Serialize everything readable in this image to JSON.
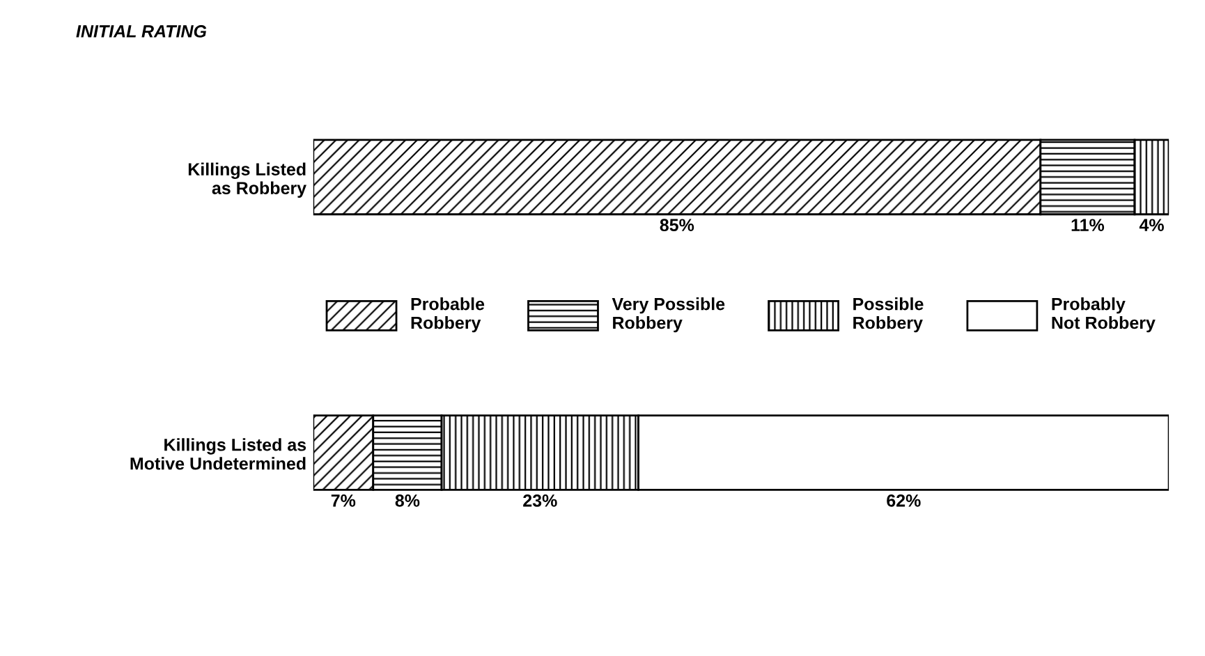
{
  "chart_data": {
    "type": "bar",
    "orientation": "horizontal",
    "stacked": true,
    "title": "INITIAL RATING",
    "categories": [
      "Killings Listed\nas Robbery",
      "Killings Listed as\nMotive Undetermined"
    ],
    "series": [
      {
        "name": "Probable\nRobbery",
        "color": "#000000",
        "values": [
          85,
          7
        ],
        "value_labels": [
          "85%",
          "7%"
        ]
      },
      {
        "name": "Very Possible\nRobbery",
        "color": "#000000",
        "values": [
          11,
          8
        ],
        "value_labels": [
          "11%",
          "8%"
        ]
      },
      {
        "name": "Possible\nRobbery",
        "color": "#000000",
        "values": [
          4,
          23
        ],
        "value_labels": [
          "4%",
          "23%"
        ]
      },
      {
        "name": "Probably\nNot Robbery",
        "color": "#000000",
        "values": [
          0,
          62
        ],
        "value_labels": [
          null,
          "62%"
        ]
      }
    ],
    "tick_labels": "y",
    "grid": false,
    "legend": "center"
  }
}
